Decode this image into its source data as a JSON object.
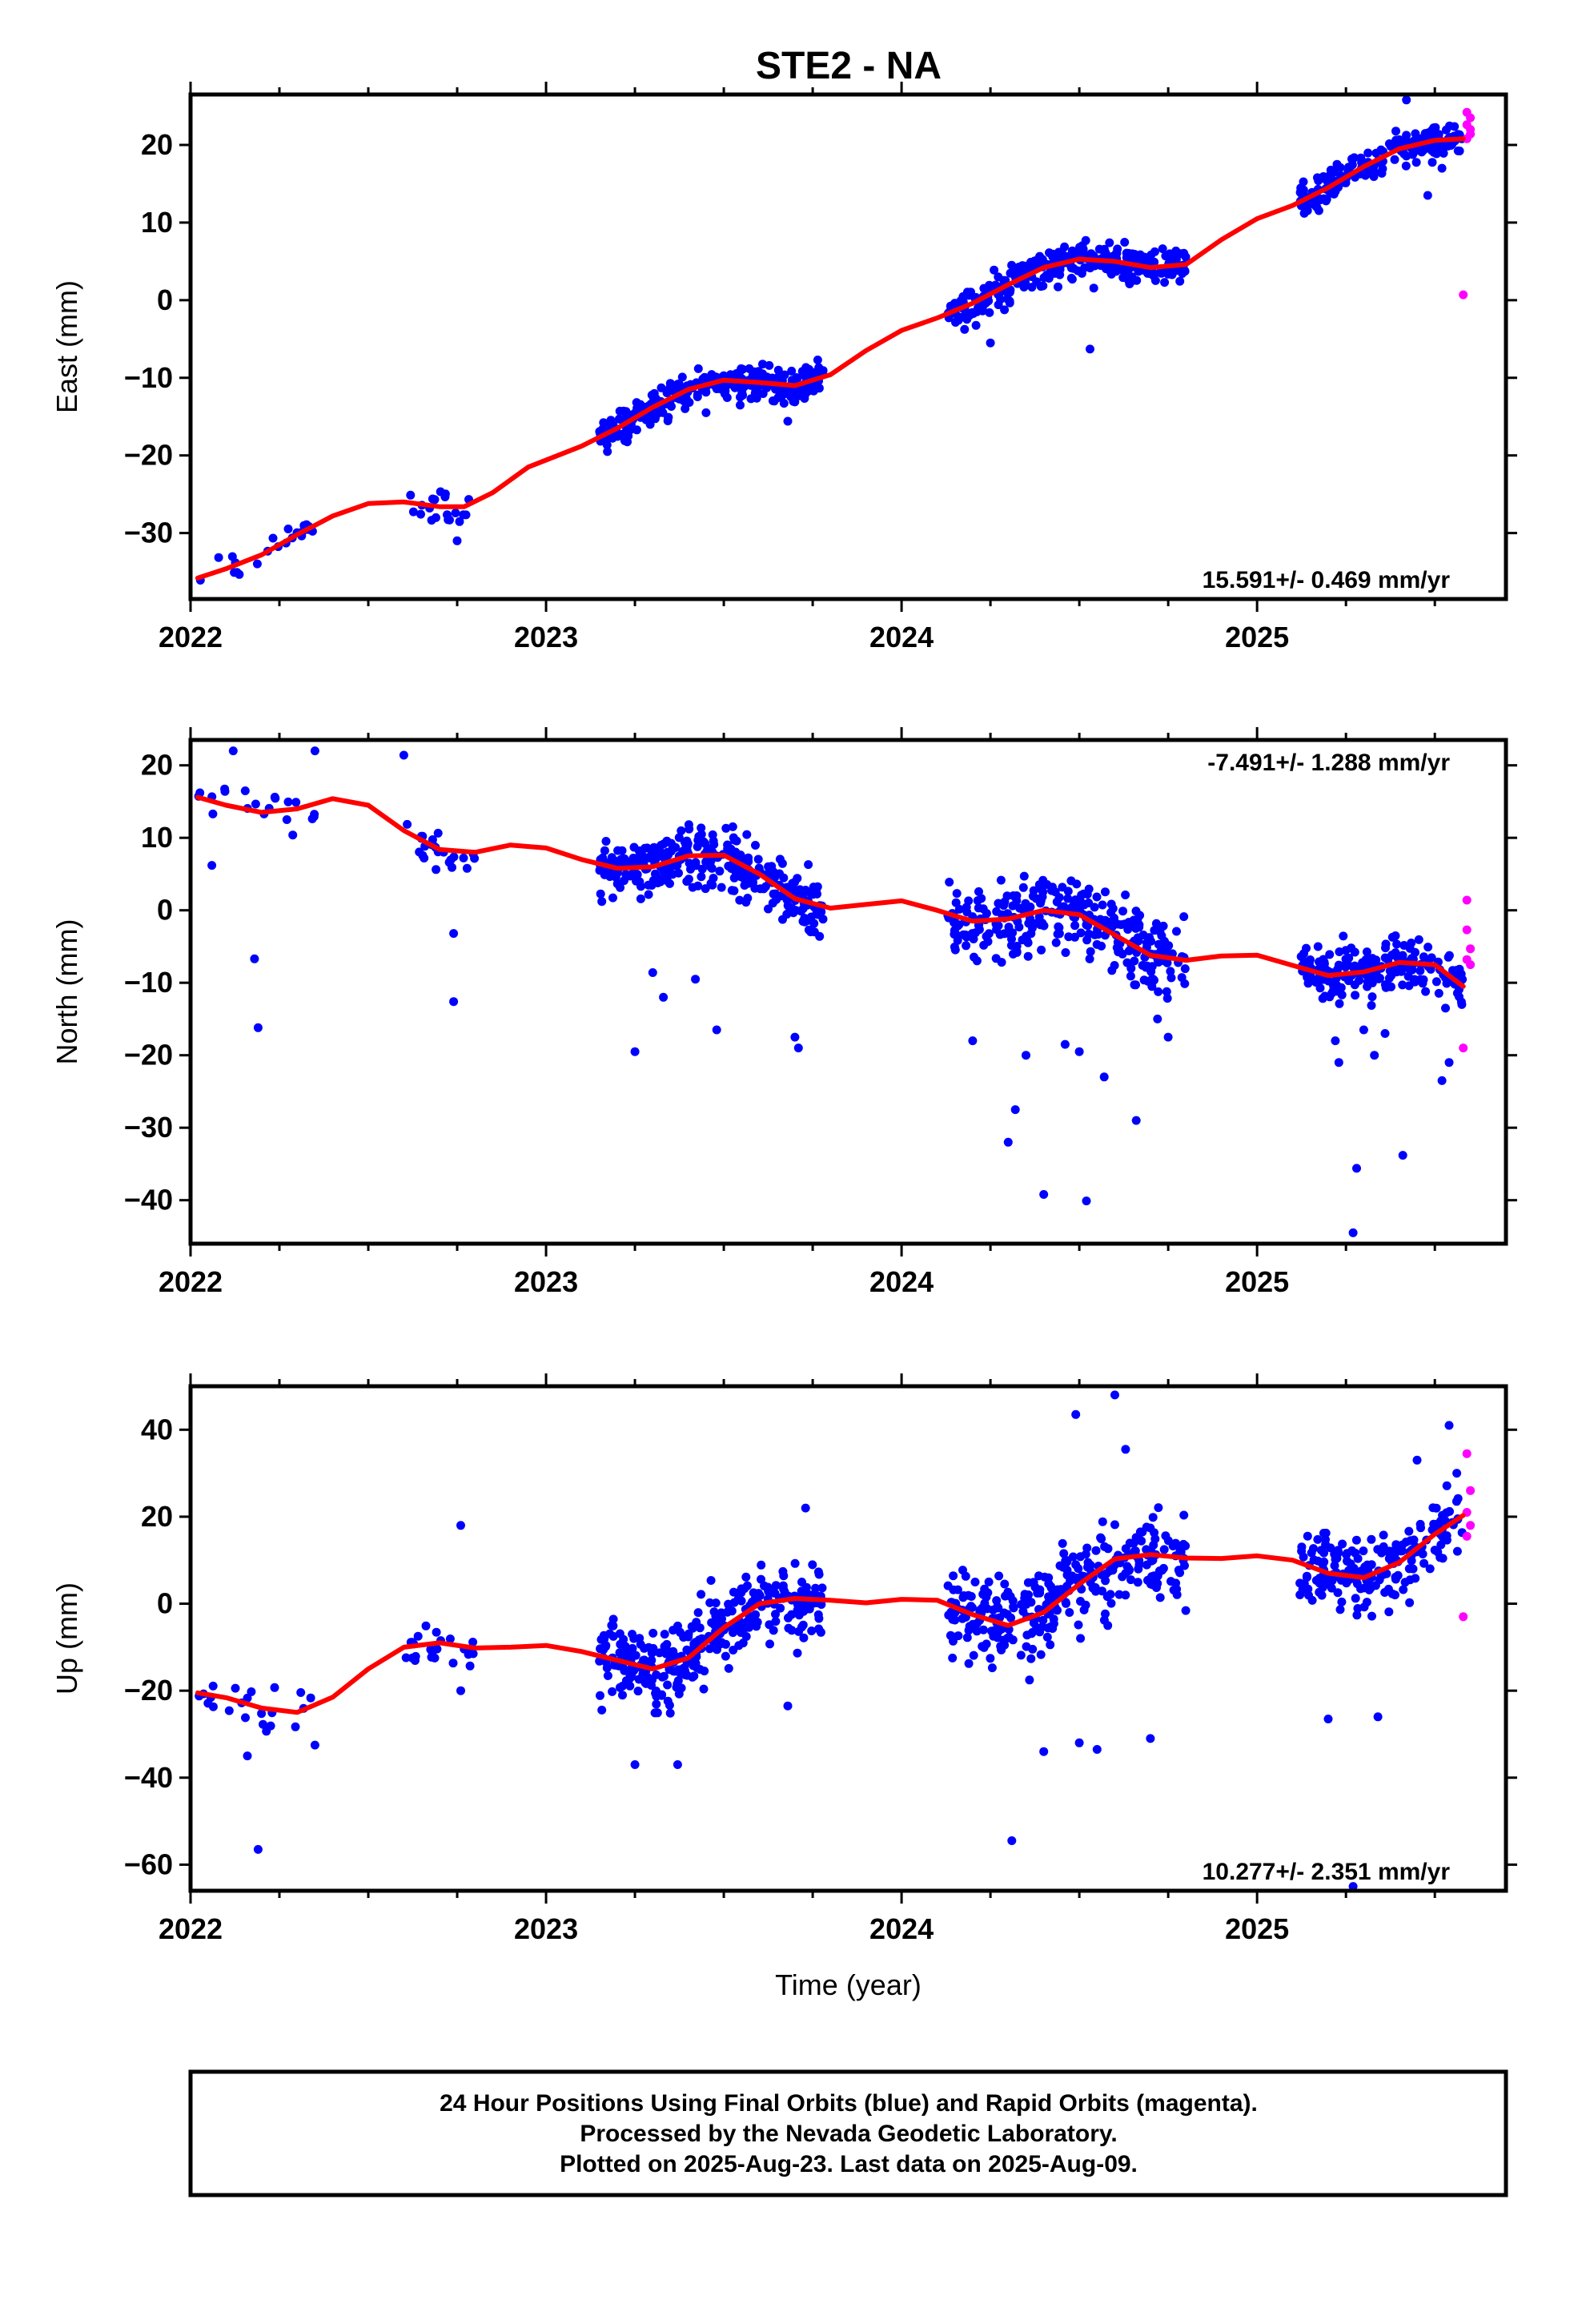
{
  "title": "STE2 - NA",
  "footer": {
    "line1": "24 Hour Positions Using Final Orbits (blue) and Rapid Orbits (magenta).",
    "line2": "Processed by the Nevada Geodetic Laboratory.",
    "line3": "Plotted on 2025-Aug-23. Last data on 2025-Aug-09."
  },
  "colors": {
    "final": "#0000ff",
    "rapid": "#ff00ff",
    "model": "#ff0000",
    "frame": "#000000"
  },
  "chart_data": [
    {
      "type": "scatter",
      "name": "east",
      "ylabel": "East (mm)",
      "xlabel": "",
      "xlim": [
        2022.0,
        2025.7
      ],
      "ylim": [
        -38.5,
        26.5
      ],
      "yticks": [
        -30,
        -20,
        -10,
        0,
        10,
        20
      ],
      "xticks": [
        2022,
        2023,
        2024,
        2025
      ],
      "rate_text": "15.591+/- 0.469 mm/yr",
      "rate_position": "bottom-right",
      "model_line": [
        [
          2022.02,
          -35.8
        ],
        [
          2022.1,
          -34.6
        ],
        [
          2022.2,
          -32.8
        ],
        [
          2022.3,
          -30.2
        ],
        [
          2022.4,
          -27.8
        ],
        [
          2022.5,
          -26.2
        ],
        [
          2022.6,
          -26.0
        ],
        [
          2022.7,
          -26.6
        ],
        [
          2022.77,
          -26.6
        ],
        [
          2022.85,
          -24.8
        ],
        [
          2022.95,
          -21.5
        ],
        [
          2023.1,
          -18.8
        ],
        [
          2023.2,
          -16.5
        ],
        [
          2023.3,
          -13.8
        ],
        [
          2023.4,
          -11.5
        ],
        [
          2023.5,
          -10.3
        ],
        [
          2023.6,
          -10.6
        ],
        [
          2023.7,
          -11.0
        ],
        [
          2023.8,
          -9.6
        ],
        [
          2023.9,
          -6.5
        ],
        [
          2024.0,
          -3.9
        ],
        [
          2024.1,
          -2.3
        ],
        [
          2024.2,
          -0.4
        ],
        [
          2024.3,
          2.0
        ],
        [
          2024.4,
          4.2
        ],
        [
          2024.5,
          5.3
        ],
        [
          2024.6,
          5.0
        ],
        [
          2024.7,
          4.2
        ],
        [
          2024.8,
          4.6
        ],
        [
          2024.9,
          7.8
        ],
        [
          2025.0,
          10.5
        ],
        [
          2025.1,
          12.2
        ],
        [
          2025.2,
          14.5
        ],
        [
          2025.3,
          17.2
        ],
        [
          2025.4,
          19.5
        ],
        [
          2025.5,
          20.6
        ],
        [
          2025.58,
          20.8
        ]
      ],
      "clusters": [
        {
          "x0": 2022.02,
          "x1": 2022.35,
          "n": 22,
          "sd": 1.3,
          "out": []
        },
        {
          "x0": 2022.6,
          "x1": 2022.8,
          "n": 20,
          "sd": 1.8,
          "out": [
            [
              2022.75,
              -31.0
            ]
          ]
        },
        {
          "x0": 2023.15,
          "x1": 2023.78,
          "n": 330,
          "sd": 1.5,
          "out": [
            [
              2023.45,
              -14.5
            ],
            [
              2023.68,
              -15.6
            ]
          ]
        },
        {
          "x0": 2024.13,
          "x1": 2024.8,
          "n": 320,
          "sd": 1.6,
          "out": [
            [
              2024.53,
              -6.3
            ],
            [
              2024.25,
              -5.5
            ]
          ]
        },
        {
          "x0": 2025.12,
          "x1": 2025.58,
          "n": 200,
          "sd": 1.5,
          "out": [
            [
              2025.42,
              25.8
            ],
            [
              2025.48,
              13.5
            ],
            [
              2025.52,
              17.0
            ]
          ]
        }
      ],
      "rapid": [
        [
          2025.59,
          24.2
        ],
        [
          2025.6,
          23.5
        ],
        [
          2025.59,
          22.6
        ],
        [
          2025.6,
          21.4
        ],
        [
          2025.59,
          20.8
        ],
        [
          2025.6,
          22.0
        ],
        [
          2025.58,
          0.7
        ]
      ]
    },
    {
      "type": "scatter",
      "name": "north",
      "ylabel": "North (mm)",
      "xlabel": "",
      "xlim": [
        2022.0,
        2025.7
      ],
      "ylim": [
        -46,
        23.5
      ],
      "yticks": [
        -40,
        -30,
        -20,
        -10,
        0,
        10,
        20
      ],
      "xticks": [
        2022,
        2023,
        2024,
        2025
      ],
      "rate_text": "-7.491+/- 1.288 mm/yr",
      "rate_position": "top-right",
      "model_line": [
        [
          2022.02,
          15.6
        ],
        [
          2022.1,
          14.5
        ],
        [
          2022.2,
          13.5
        ],
        [
          2022.3,
          14.0
        ],
        [
          2022.4,
          15.4
        ],
        [
          2022.5,
          14.5
        ],
        [
          2022.6,
          11.0
        ],
        [
          2022.7,
          8.4
        ],
        [
          2022.8,
          8.0
        ],
        [
          2022.9,
          9.0
        ],
        [
          2023.0,
          8.6
        ],
        [
          2023.1,
          7.0
        ],
        [
          2023.2,
          5.8
        ],
        [
          2023.3,
          6.0
        ],
        [
          2023.4,
          7.5
        ],
        [
          2023.5,
          7.6
        ],
        [
          2023.6,
          5.0
        ],
        [
          2023.7,
          1.6
        ],
        [
          2023.8,
          0.3
        ],
        [
          2023.9,
          0.8
        ],
        [
          2024.0,
          1.3
        ],
        [
          2024.1,
          0.0
        ],
        [
          2024.2,
          -1.5
        ],
        [
          2024.3,
          -1.2
        ],
        [
          2024.4,
          0.0
        ],
        [
          2024.5,
          -0.6
        ],
        [
          2024.6,
          -3.4
        ],
        [
          2024.7,
          -6.2
        ],
        [
          2024.8,
          -6.9
        ],
        [
          2024.9,
          -6.3
        ],
        [
          2025.0,
          -6.2
        ],
        [
          2025.1,
          -7.6
        ],
        [
          2025.2,
          -9.0
        ],
        [
          2025.3,
          -8.5
        ],
        [
          2025.4,
          -7.2
        ],
        [
          2025.5,
          -7.5
        ],
        [
          2025.58,
          -10.5
        ]
      ],
      "clusters": [
        {
          "x0": 2022.02,
          "x1": 2022.35,
          "n": 20,
          "sd": 3.0,
          "out": [
            [
              2022.06,
              6.2
            ],
            [
              2022.18,
              -6.7
            ],
            [
              2022.19,
              -16.2
            ],
            [
              2022.12,
              22.0
            ],
            [
              2022.35,
              22.0
            ]
          ]
        },
        {
          "x0": 2022.6,
          "x1": 2022.8,
          "n": 24,
          "sd": 2.0,
          "out": [
            [
              2022.6,
              21.4
            ],
            [
              2022.74,
              -3.2
            ],
            [
              2022.74,
              -12.6
            ]
          ]
        },
        {
          "x0": 2023.15,
          "x1": 2023.78,
          "n": 320,
          "sd": 2.8,
          "out": [
            [
              2023.25,
              -19.5
            ],
            [
              2023.48,
              -16.5
            ],
            [
              2023.33,
              -12.0
            ],
            [
              2023.7,
              -17.5
            ],
            [
              2023.71,
              -19.0
            ],
            [
              2023.3,
              -8.6
            ],
            [
              2023.42,
              -9.5
            ]
          ]
        },
        {
          "x0": 2024.13,
          "x1": 2024.8,
          "n": 300,
          "sd": 3.5,
          "out": [
            [
              2024.3,
              -32.0
            ],
            [
              2024.32,
              -27.5
            ],
            [
              2024.4,
              -39.2
            ],
            [
              2024.52,
              -40.1
            ],
            [
              2024.57,
              -23.0
            ],
            [
              2024.66,
              -29.0
            ],
            [
              2024.35,
              -20.0
            ],
            [
              2024.5,
              -19.5
            ],
            [
              2024.75,
              -17.5
            ],
            [
              2024.2,
              -18.0
            ],
            [
              2024.46,
              -18.5
            ],
            [
              2024.72,
              -15.0
            ]
          ]
        },
        {
          "x0": 2025.12,
          "x1": 2025.58,
          "n": 200,
          "sd": 2.6,
          "out": [
            [
              2025.27,
              -44.5
            ],
            [
              2025.28,
              -35.6
            ],
            [
              2025.41,
              -33.8
            ],
            [
              2025.52,
              -23.5
            ],
            [
              2025.54,
              -21.0
            ],
            [
              2025.23,
              -21.0
            ],
            [
              2025.33,
              -20.0
            ],
            [
              2025.36,
              -17.0
            ],
            [
              2025.53,
              -13.5
            ],
            [
              2025.22,
              -18.0
            ],
            [
              2025.3,
              -16.5
            ]
          ]
        }
      ],
      "rapid": [
        [
          2025.59,
          1.4
        ],
        [
          2025.59,
          -2.7
        ],
        [
          2025.6,
          -5.3
        ],
        [
          2025.59,
          -6.8
        ],
        [
          2025.6,
          -7.5
        ],
        [
          2025.58,
          -19.0
        ]
      ]
    },
    {
      "type": "scatter",
      "name": "up",
      "ylabel": "Up (mm)",
      "xlabel": "Time (year)",
      "xlim": [
        2022.0,
        2025.7
      ],
      "ylim": [
        -66,
        50
      ],
      "yticks": [
        -60,
        -40,
        -20,
        0,
        20,
        40
      ],
      "xticks": [
        2022,
        2023,
        2024,
        2025
      ],
      "rate_text": "10.277+/- 2.351 mm/yr",
      "rate_position": "bottom-right",
      "model_line": [
        [
          2022.02,
          -20.5
        ],
        [
          2022.1,
          -21.6
        ],
        [
          2022.2,
          -24.0
        ],
        [
          2022.3,
          -25.0
        ],
        [
          2022.4,
          -21.5
        ],
        [
          2022.5,
          -15.0
        ],
        [
          2022.6,
          -10.0
        ],
        [
          2022.7,
          -9.0
        ],
        [
          2022.8,
          -10.2
        ],
        [
          2022.9,
          -10.0
        ],
        [
          2023.0,
          -9.6
        ],
        [
          2023.1,
          -11.0
        ],
        [
          2023.2,
          -13.0
        ],
        [
          2023.3,
          -15.0
        ],
        [
          2023.4,
          -12.5
        ],
        [
          2023.5,
          -5.5
        ],
        [
          2023.6,
          0.0
        ],
        [
          2023.7,
          1.2
        ],
        [
          2023.8,
          0.8
        ],
        [
          2023.9,
          0.2
        ],
        [
          2024.0,
          1.0
        ],
        [
          2024.1,
          0.8
        ],
        [
          2024.2,
          -2.5
        ],
        [
          2024.3,
          -5.0
        ],
        [
          2024.4,
          -2.0
        ],
        [
          2024.5,
          4.5
        ],
        [
          2024.6,
          10.3
        ],
        [
          2024.7,
          11.3
        ],
        [
          2024.8,
          10.5
        ],
        [
          2024.9,
          10.4
        ],
        [
          2025.0,
          11.0
        ],
        [
          2025.1,
          10.0
        ],
        [
          2025.2,
          7.0
        ],
        [
          2025.3,
          6.0
        ],
        [
          2025.4,
          9.5
        ],
        [
          2025.5,
          16.0
        ],
        [
          2025.58,
          20.3
        ]
      ],
      "clusters": [
        {
          "x0": 2022.02,
          "x1": 2022.35,
          "n": 22,
          "sd": 4.5,
          "out": [
            [
              2022.19,
              -56.5
            ],
            [
              2022.16,
              -35.0
            ],
            [
              2022.35,
              -32.5
            ]
          ]
        },
        {
          "x0": 2022.6,
          "x1": 2022.8,
          "n": 24,
          "sd": 4.0,
          "out": [
            [
              2022.76,
              18.0
            ],
            [
              2022.76,
              -20.0
            ]
          ]
        },
        {
          "x0": 2023.15,
          "x1": 2023.78,
          "n": 330,
          "sd": 6.0,
          "out": [
            [
              2023.25,
              -37.0
            ],
            [
              2023.37,
              -37.0
            ],
            [
              2023.73,
              22.0
            ],
            [
              2023.68,
              -23.5
            ]
          ]
        },
        {
          "x0": 2024.13,
          "x1": 2024.8,
          "n": 320,
          "sd": 7.5,
          "out": [
            [
              2024.31,
              -54.5
            ],
            [
              2024.49,
              43.5
            ],
            [
              2024.6,
              48.0
            ],
            [
              2024.63,
              35.5
            ],
            [
              2024.4,
              -34.0
            ],
            [
              2024.55,
              -33.5
            ],
            [
              2024.5,
              -32.0
            ],
            [
              2024.7,
              -31.0
            ]
          ]
        },
        {
          "x0": 2025.12,
          "x1": 2025.58,
          "n": 200,
          "sd": 6.0,
          "out": [
            [
              2025.27,
              -65.0
            ],
            [
              2025.2,
              -26.5
            ],
            [
              2025.34,
              -26.0
            ],
            [
              2025.54,
              41.0
            ],
            [
              2025.45,
              33.0
            ]
          ]
        }
      ],
      "rapid": [
        [
          2025.59,
          34.5
        ],
        [
          2025.6,
          26.0
        ],
        [
          2025.59,
          21.0
        ],
        [
          2025.6,
          18.0
        ],
        [
          2025.59,
          15.5
        ],
        [
          2025.58,
          -3.0
        ]
      ]
    }
  ]
}
